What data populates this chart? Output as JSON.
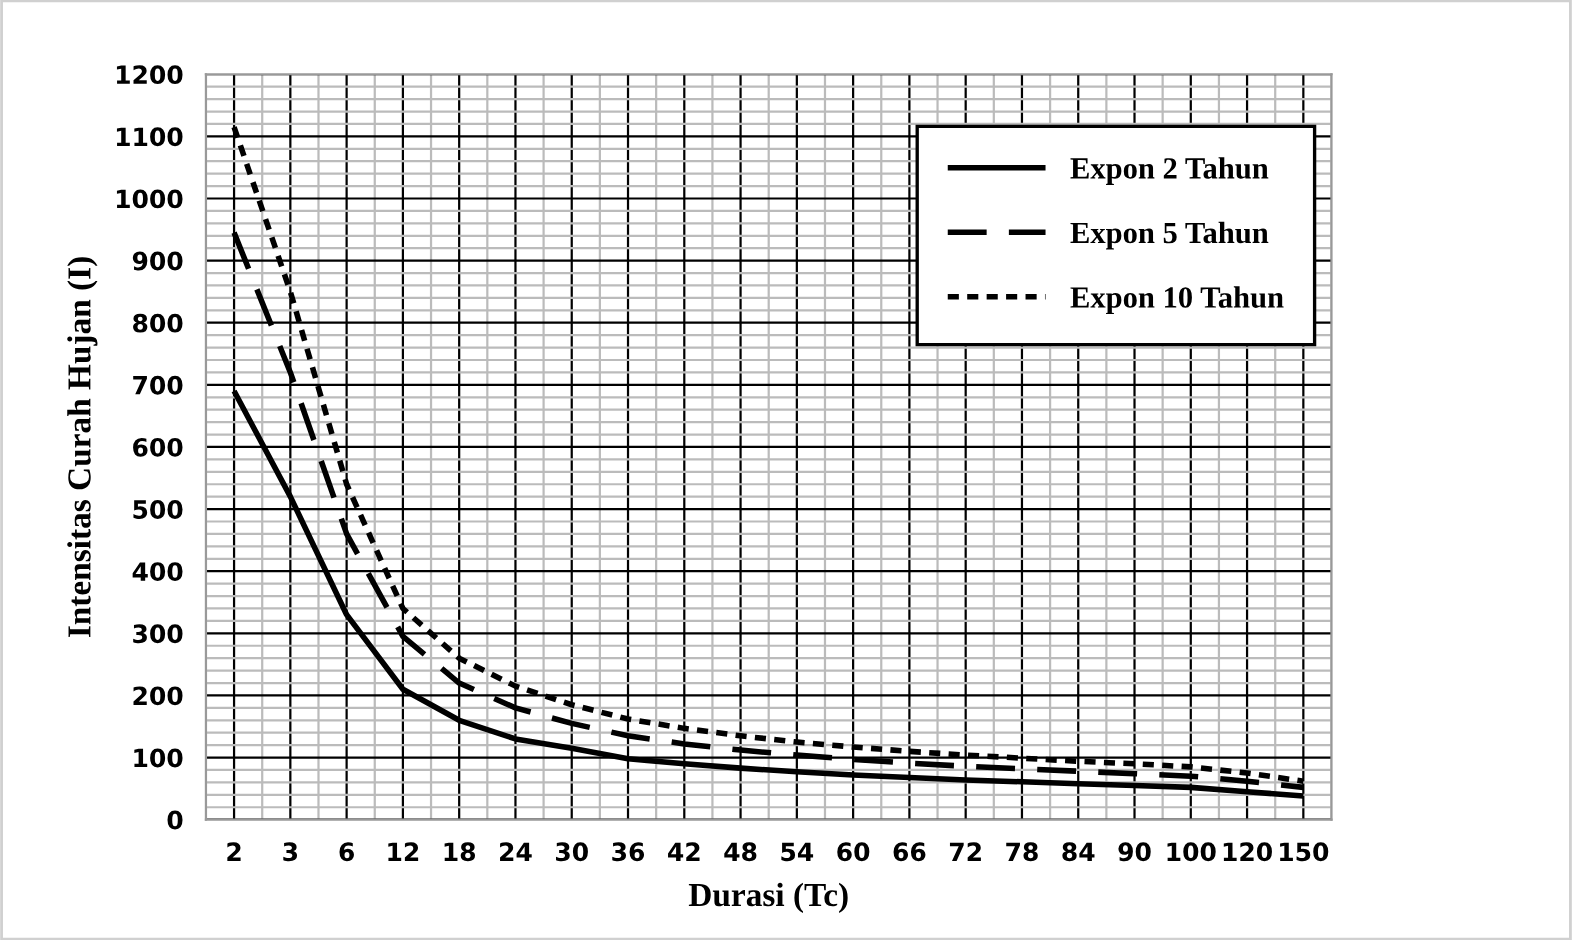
{
  "chart_data": {
    "type": "line",
    "xlabel": "Durasi (Tc)",
    "ylabel": "Intensitas Curah Hujan (I)",
    "categories": [
      "2",
      "3",
      "6",
      "12",
      "18",
      "24",
      "30",
      "36",
      "42",
      "48",
      "54",
      "60",
      "66",
      "72",
      "78",
      "84",
      "90",
      "100",
      "120",
      "150"
    ],
    "series": [
      {
        "name": "Expon 2 Tahun",
        "color": "#000000",
        "line_style": "solid",
        "values": [
          690,
          520,
          330,
          210,
          160,
          130,
          115,
          98,
          90,
          83,
          77,
          72,
          68,
          64,
          61,
          58,
          55,
          52,
          45,
          38
        ]
      },
      {
        "name": "Expon 5 Tahun",
        "color": "#000000",
        "line_style": "dashed",
        "values": [
          945,
          720,
          460,
          295,
          220,
          180,
          155,
          135,
          122,
          112,
          104,
          97,
          91,
          86,
          82,
          78,
          74,
          70,
          62,
          52
        ]
      },
      {
        "name": "Expon 10 Tahun",
        "color": "#000000",
        "line_style": "dotted",
        "values": [
          1115,
          850,
          540,
          340,
          260,
          215,
          185,
          162,
          147,
          135,
          125,
          117,
          110,
          104,
          99,
          94,
          90,
          85,
          75,
          62
        ]
      }
    ],
    "ylim": [
      0,
      1200
    ],
    "yticks": [
      0,
      100,
      200,
      300,
      400,
      500,
      600,
      700,
      800,
      900,
      1000,
      1100,
      1200
    ],
    "grid": true,
    "legend": "top right",
    "marker": "none"
  }
}
